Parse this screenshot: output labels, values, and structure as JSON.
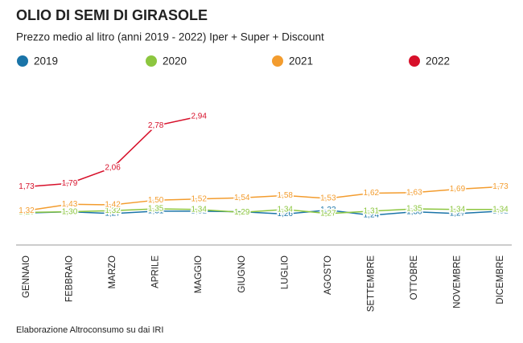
{
  "chart_data": {
    "type": "line",
    "title": "OLIO DI SEMI DI GIRASOLE",
    "subtitle": "Prezzo medio al litro (anni 2019 - 2022) Iper + Super + Discount",
    "source": "Elaborazione Altroconsumo su dai IRI",
    "categories": [
      "GENNAIO",
      "FEBBRAIO",
      "MARZO",
      "APRILE",
      "MAGGIO",
      "GIUGNO",
      "LUGLIO",
      "AGOSTO",
      "SETTEMBRE",
      "OTTOBRE",
      "NOVEMBRE",
      "DICEMBRE"
    ],
    "series": [
      {
        "name": "2019",
        "color": "#1a74a8",
        "values": [
          1.28,
          1.3,
          1.27,
          1.31,
          1.31,
          1.3,
          1.26,
          1.33,
          1.24,
          1.3,
          1.27,
          1.31
        ],
        "value_labels": [
          "1,28",
          "1,30",
          "1,27",
          "1,31",
          "1,31",
          "1,30",
          "1,26",
          "1,33",
          "1,24",
          "1,30",
          "1,27",
          "1,31"
        ]
      },
      {
        "name": "2020",
        "color": "#8cc63f",
        "values": [
          1.29,
          1.3,
          1.32,
          1.35,
          1.34,
          1.29,
          1.34,
          1.27,
          1.31,
          1.35,
          1.34,
          1.34
        ],
        "value_labels": [
          "1,29",
          "1,30",
          "1,32",
          "1,35",
          "1,34",
          "1,29",
          "1,34",
          "1,27",
          "1,31",
          "1,35",
          "1,34",
          "1,34"
        ]
      },
      {
        "name": "2021",
        "color": "#f39c2e",
        "values": [
          1.32,
          1.43,
          1.42,
          1.5,
          1.52,
          1.54,
          1.58,
          1.53,
          1.62,
          1.63,
          1.69,
          1.73
        ],
        "value_labels": [
          "1,32",
          "1,43",
          "1,42",
          "1,50",
          "1,52",
          "1,54",
          "1,58",
          "1,53",
          "1,62",
          "1,63",
          "1,69",
          "1,73"
        ]
      },
      {
        "name": "2022",
        "color": "#d7102a",
        "values": [
          1.73,
          1.79,
          2.06,
          2.78,
          2.94,
          null,
          null,
          null,
          null,
          null,
          null,
          null
        ],
        "value_labels": [
          "1,73",
          "1,79",
          "2,06",
          "2,78",
          "2,94",
          null,
          null,
          null,
          null,
          null,
          null,
          null
        ]
      }
    ]
  }
}
